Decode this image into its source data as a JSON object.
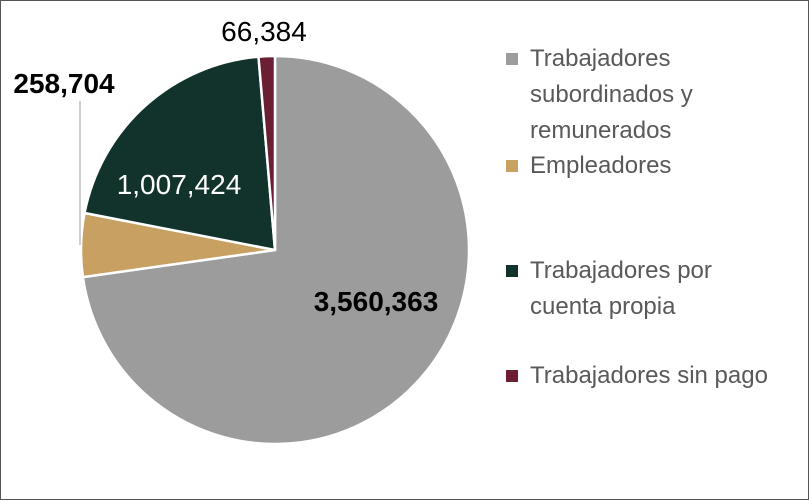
{
  "chart_data": {
    "type": "pie",
    "categories": [
      "Trabajadores subordinados y remunerados",
      "Empleadores",
      "Trabajadores por cuenta propia",
      "Trabajadores sin pago"
    ],
    "values": [
      3560363,
      258704,
      1007424,
      66384
    ],
    "data_labels": [
      "3,560,363",
      "258,704",
      "1,007,424",
      "66,384"
    ],
    "colors": [
      "#9c9c9c",
      "#c8a062",
      "#12332c",
      "#6b1f33"
    ],
    "legend_position": "right",
    "start_angle_deg": 0,
    "direction": "clockwise"
  }
}
